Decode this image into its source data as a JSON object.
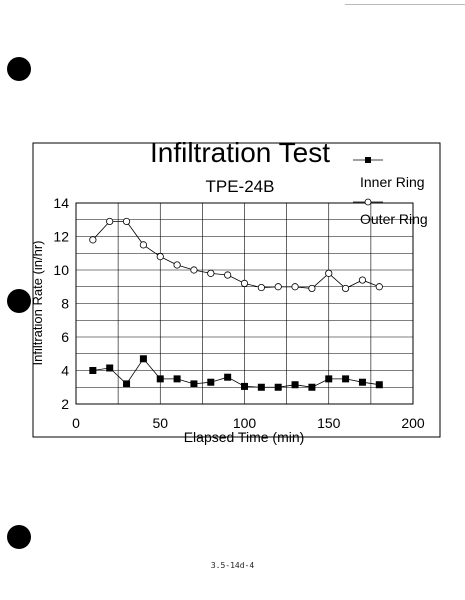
{
  "chart_data": {
    "type": "line",
    "title": "Infiltration Test",
    "subtitle": "TPE-24B",
    "xlabel": "Elapsed Time (min)",
    "ylabel": "Infiltration Rate (in/hr)",
    "xlim": [
      0,
      200
    ],
    "ylim": [
      2,
      14
    ],
    "xticks": [
      0,
      50,
      100,
      150,
      200
    ],
    "yticks": [
      2,
      4,
      6,
      8,
      10,
      12,
      14
    ],
    "grid": true,
    "legend_position": "top-right",
    "x": [
      10,
      20,
      30,
      40,
      50,
      60,
      70,
      80,
      90,
      100,
      110,
      120,
      130,
      140,
      150,
      160,
      170,
      180
    ],
    "series": [
      {
        "name": "Inner Ring",
        "marker": "filled-square",
        "values": [
          4.0,
          4.15,
          3.2,
          4.7,
          3.5,
          3.5,
          3.2,
          3.3,
          3.6,
          3.05,
          3.0,
          3.0,
          3.15,
          3.0,
          3.5,
          3.5,
          3.3,
          3.15
        ]
      },
      {
        "name": "Outer Ring",
        "marker": "open-circle",
        "values": [
          11.8,
          12.9,
          12.9,
          11.5,
          10.8,
          10.3,
          10.0,
          9.8,
          9.7,
          9.2,
          8.95,
          9.0,
          9.0,
          8.9,
          9.8,
          8.9,
          9.4,
          9.0
        ]
      }
    ]
  },
  "footer": {
    "page_number": "3.5-14d-4"
  }
}
